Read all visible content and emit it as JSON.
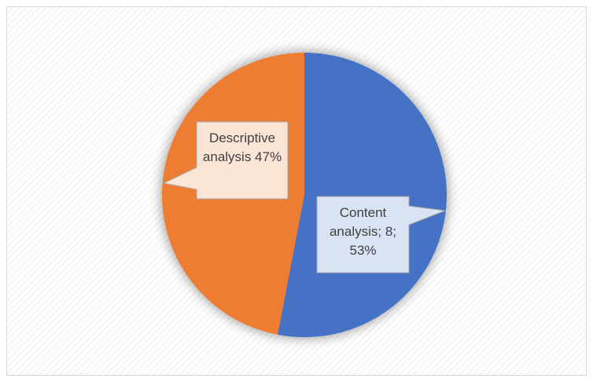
{
  "chart_data": {
    "type": "pie",
    "values": [
      53,
      47
    ],
    "value_labels": [
      "Content analysis; 8; 53%",
      "Descriptive analysis 47%"
    ],
    "colors": [
      "#4472c4",
      "#ed7d31"
    ],
    "label_fills": [
      "#dae3f3",
      "#fbe5d6"
    ]
  }
}
